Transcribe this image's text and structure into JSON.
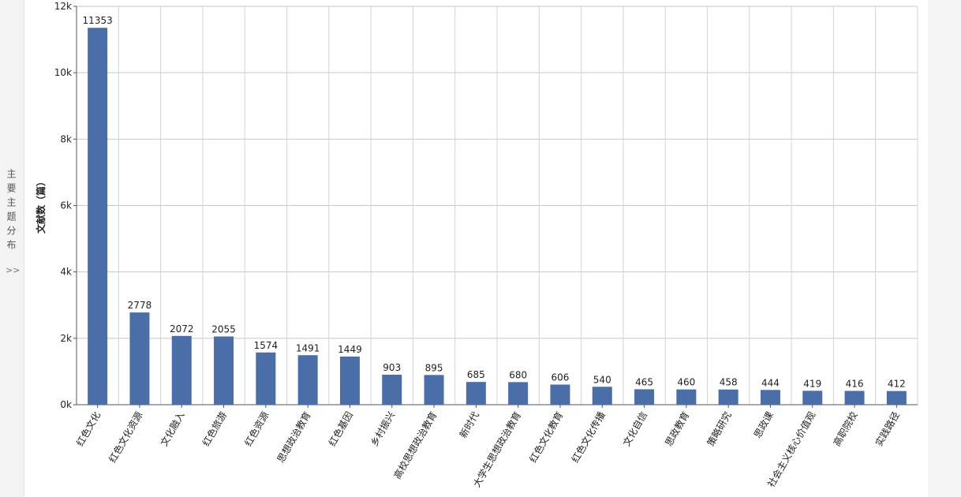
{
  "sidebar": {
    "label": "主要主题分布",
    "toggle": ">>"
  },
  "chart_data": {
    "type": "bar",
    "y_label": "文献数（篇）",
    "categories": [
      "红色文化",
      "红色文化资源",
      "文化融入",
      "红色旅游",
      "红色资源",
      "思想政治教育",
      "红色基因",
      "乡村振兴",
      "高校思想政治教育",
      "新时代",
      "大学生思想政治教育",
      "红色文化教育",
      "红色文化传播",
      "文化自信",
      "思政教育",
      "策略研究",
      "思政课",
      "社会主义核心价值观",
      "高职院校",
      "实践路径"
    ],
    "values": [
      11353,
      2778,
      2072,
      2055,
      1574,
      1491,
      1449,
      903,
      895,
      685,
      680,
      606,
      540,
      465,
      460,
      458,
      444,
      419,
      416,
      412
    ],
    "color": "#4a6ea8",
    "ylim": [
      0,
      12000
    ],
    "yticks": [
      {
        "value": 0,
        "label": "0k"
      },
      {
        "value": 2000,
        "label": "2k"
      },
      {
        "value": 4000,
        "label": "4k"
      },
      {
        "value": 6000,
        "label": "6k"
      },
      {
        "value": 8000,
        "label": "8k"
      },
      {
        "value": 10000,
        "label": "10k"
      },
      {
        "value": 12000,
        "label": "12k"
      }
    ],
    "grid": true
  }
}
